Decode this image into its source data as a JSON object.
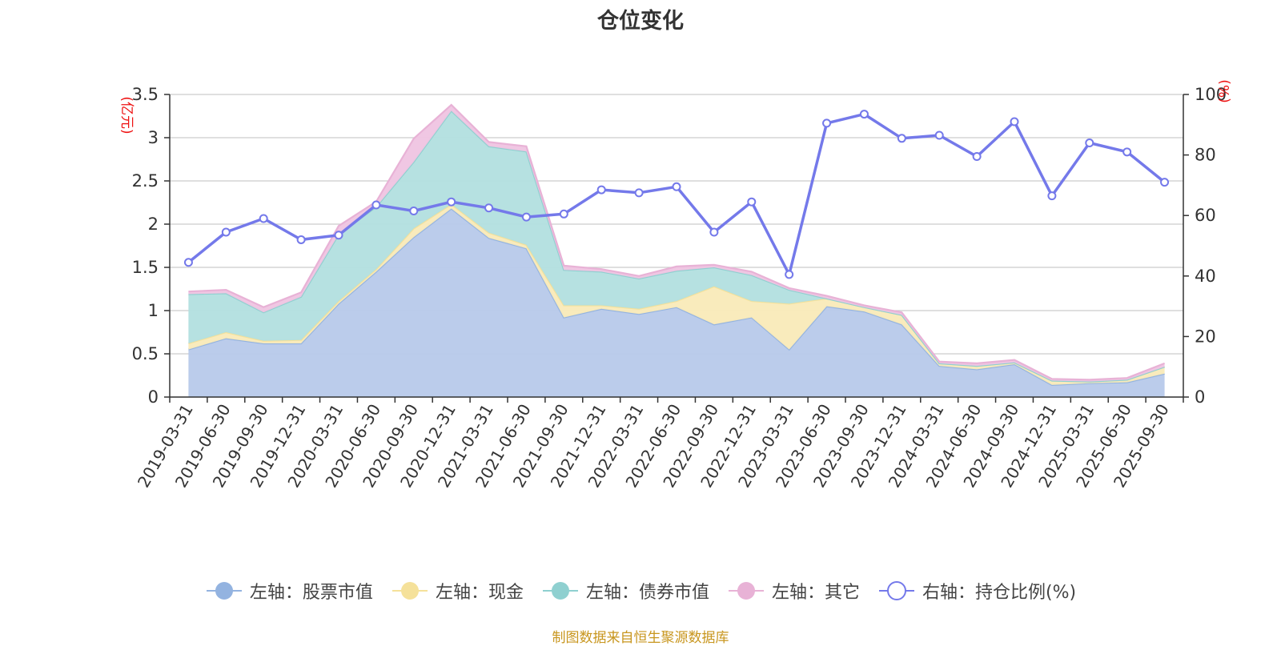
{
  "page": {
    "source_note": "制图数据来自恒生聚源数据库"
  },
  "chart_data": {
    "type": "area",
    "title": "仓位变化",
    "left_unit": "(亿元)",
    "right_unit": "(%)",
    "categories": [
      "2019-03-31",
      "2019-06-30",
      "2019-09-30",
      "2019-12-31",
      "2020-03-31",
      "2020-06-30",
      "2020-09-30",
      "2020-12-31",
      "2021-03-31",
      "2021-06-30",
      "2021-09-30",
      "2021-12-31",
      "2022-03-31",
      "2022-06-30",
      "2022-09-30",
      "2022-12-31",
      "2023-03-31",
      "2023-06-30",
      "2023-09-30",
      "2023-12-31",
      "2024-03-31",
      "2024-06-30",
      "2024-09-30",
      "2024-12-31",
      "2025-03-31",
      "2025-06-30",
      "2025-09-30"
    ],
    "left_ylim": [
      0,
      3.5
    ],
    "left_ticks": [
      "0",
      "0.5",
      "1",
      "1.5",
      "2",
      "2.5",
      "3",
      "3.5"
    ],
    "right_ylim": [
      0,
      100
    ],
    "right_ticks": [
      "0",
      "20",
      "40",
      "60",
      "80",
      "100"
    ],
    "stacked": true,
    "series": [
      {
        "name": "左轴：股票市值",
        "axis": "left",
        "color": "#93b3e0",
        "fill": "#b7c9ea",
        "values": [
          0.55,
          0.68,
          0.62,
          0.62,
          1.08,
          1.45,
          1.85,
          2.18,
          1.84,
          1.72,
          0.92,
          1.02,
          0.96,
          1.04,
          0.84,
          0.92,
          0.55,
          1.05,
          0.99,
          0.84,
          0.36,
          0.32,
          0.38,
          0.14,
          0.16,
          0.17,
          0.27
        ]
      },
      {
        "name": "左轴：现金",
        "axis": "left",
        "color": "#f5e19a",
        "fill": "#f9eab8",
        "values": [
          0.07,
          0.07,
          0.03,
          0.04,
          0.03,
          0.03,
          0.1,
          0.05,
          0.06,
          0.04,
          0.14,
          0.04,
          0.06,
          0.07,
          0.44,
          0.19,
          0.53,
          0.09,
          0.05,
          0.11,
          0.03,
          0.04,
          0.02,
          0.05,
          0.02,
          0.03,
          0.08
        ]
      },
      {
        "name": "左轴：债券市值",
        "axis": "left",
        "color": "#8fd0d0",
        "fill": "#b2dfdf",
        "values": [
          0.57,
          0.45,
          0.33,
          0.5,
          0.77,
          0.72,
          0.77,
          1.08,
          1.0,
          1.08,
          0.41,
          0.39,
          0.35,
          0.35,
          0.22,
          0.3,
          0.16,
          0,
          0,
          0,
          0,
          0,
          0,
          0,
          0,
          0,
          0
        ]
      },
      {
        "name": "左轴：其它",
        "axis": "left",
        "color": "#e8b2d6",
        "fill": "#efc4e1",
        "values": [
          0.03,
          0.04,
          0.06,
          0.05,
          0.1,
          0.06,
          0.27,
          0.07,
          0.05,
          0.06,
          0.05,
          0.03,
          0.03,
          0.05,
          0.03,
          0.04,
          0.02,
          0.03,
          0.02,
          0.03,
          0.02,
          0.03,
          0.03,
          0.02,
          0.02,
          0.02,
          0.04
        ]
      },
      {
        "name": "右轴：持仓比例(%)",
        "axis": "right",
        "color": "#7479ea",
        "values": [
          44.5,
          54.5,
          59,
          52,
          53.5,
          63.5,
          61.5,
          64.5,
          62.5,
          59.5,
          60.5,
          68.5,
          67.5,
          69.5,
          54.5,
          64.5,
          40.5,
          90.5,
          93.5,
          85.5,
          86.5,
          79.5,
          91,
          66.5,
          84,
          81,
          71
        ]
      }
    ]
  }
}
